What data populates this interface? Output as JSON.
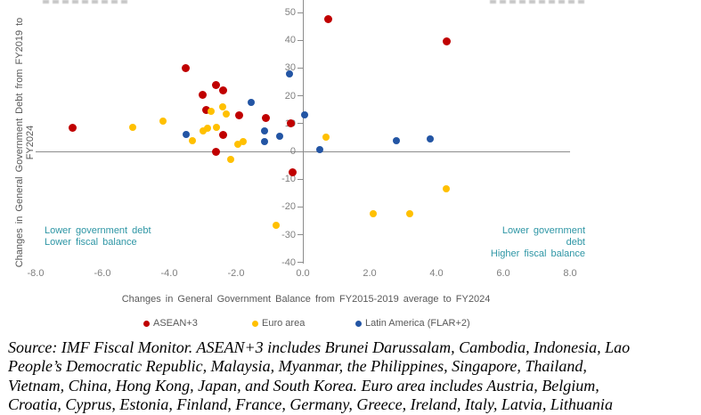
{
  "chart_data": {
    "type": "scatter",
    "title": "",
    "xlabel": "Changes in General Government Balance from FY2015-2019 average to FY2024",
    "ylabel": "Changes in General Government Debt from FY2019 to FY2024",
    "xlim": [
      -8.0,
      8.0
    ],
    "ylim": [
      -40,
      50
    ],
    "grid": false,
    "legend_position": "bottom",
    "xticks": [
      {
        "v": -8,
        "label": "-8.0"
      },
      {
        "v": -6,
        "label": "-6.0"
      },
      {
        "v": -4,
        "label": "-4.0"
      },
      {
        "v": -2,
        "label": "-2.0"
      },
      {
        "v": 0,
        "label": "0.0"
      },
      {
        "v": 2,
        "label": "2.0"
      },
      {
        "v": 4,
        "label": "4.0"
      },
      {
        "v": 6,
        "label": "6.0"
      },
      {
        "v": 8,
        "label": "8.0"
      }
    ],
    "yticks": [
      {
        "v": 50,
        "label": "50"
      },
      {
        "v": 40,
        "label": "40"
      },
      {
        "v": 30,
        "label": "30"
      },
      {
        "v": 20,
        "label": "20"
      },
      {
        "v": 10,
        "label": "10"
      },
      {
        "v": 0,
        "label": "0"
      },
      {
        "v": -10,
        "label": "-10"
      },
      {
        "v": -20,
        "label": "-20"
      },
      {
        "v": -30,
        "label": "-30"
      },
      {
        "v": -40,
        "label": "-40"
      }
    ],
    "series": [
      {
        "name": "ASEAN+3",
        "color": "#C00000",
        "marker_size": 9,
        "points": [
          [
            -6.9,
            8.5
          ],
          [
            -3.5,
            30
          ],
          [
            -3.0,
            20.5
          ],
          [
            -2.6,
            24
          ],
          [
            -2.4,
            22
          ],
          [
            -2.9,
            15
          ],
          [
            -1.9,
            13
          ],
          [
            -1.1,
            12
          ],
          [
            -2.4,
            6
          ],
          [
            -2.6,
            0
          ],
          [
            -0.35,
            10
          ],
          [
            -0.3,
            -7.5
          ],
          [
            0.75,
            47.5
          ],
          [
            4.3,
            39.5
          ]
        ]
      },
      {
        "name": "Euro area",
        "color": "#FFC000",
        "marker_size": 8,
        "points": [
          [
            -5.1,
            8.5
          ],
          [
            -4.2,
            11
          ],
          [
            -3.3,
            4
          ],
          [
            -3.0,
            7.5
          ],
          [
            -2.85,
            8.3
          ],
          [
            -2.6,
            8.7
          ],
          [
            -2.75,
            14.5
          ],
          [
            -2.4,
            16
          ],
          [
            -2.3,
            13.5
          ],
          [
            -1.95,
            2.5
          ],
          [
            -1.8,
            3.5
          ],
          [
            -2.15,
            -3
          ],
          [
            -0.8,
            -26.5
          ],
          [
            0.7,
            5
          ],
          [
            2.1,
            -22.5
          ],
          [
            3.2,
            -22.5
          ],
          [
            4.3,
            -13.5
          ]
        ]
      },
      {
        "name": "Latin America (FLAR+2)",
        "color": "#2355A4",
        "marker_size": 8,
        "points": [
          [
            -3.5,
            6
          ],
          [
            -1.55,
            17.5
          ],
          [
            -1.15,
            7.5
          ],
          [
            -1.15,
            3.5
          ],
          [
            -0.7,
            5.5
          ],
          [
            -0.4,
            28
          ],
          [
            0.05,
            13
          ],
          [
            0.5,
            0.5
          ],
          [
            2.8,
            4
          ],
          [
            3.8,
            4.5
          ]
        ]
      }
    ]
  },
  "annotations": {
    "teal_color": "#2E96A5",
    "bottom_left_line1": "Lower government debt",
    "bottom_left_line2": "Lower fiscal balance",
    "bottom_right_line1": "Lower government debt",
    "bottom_right_line2": "Higher fiscal balance"
  },
  "footer": {
    "lines": [
      "Source: IMF Fiscal Monitor. ASEAN+3 includes Brunei Darussalam, Cambodia, Indonesia, Lao",
      "People’s Democratic Republic, Malaysia, Myanmar, the Philippines, Singapore, Thailand,",
      "Vietnam, China, Hong Kong, Japan, and South Korea. Euro area includes Austria, Belgium,",
      "Croatia, Cyprus, Estonia, Finland, France, Germany, Greece, Ireland, Italy, Latvia, Lithuania"
    ]
  }
}
